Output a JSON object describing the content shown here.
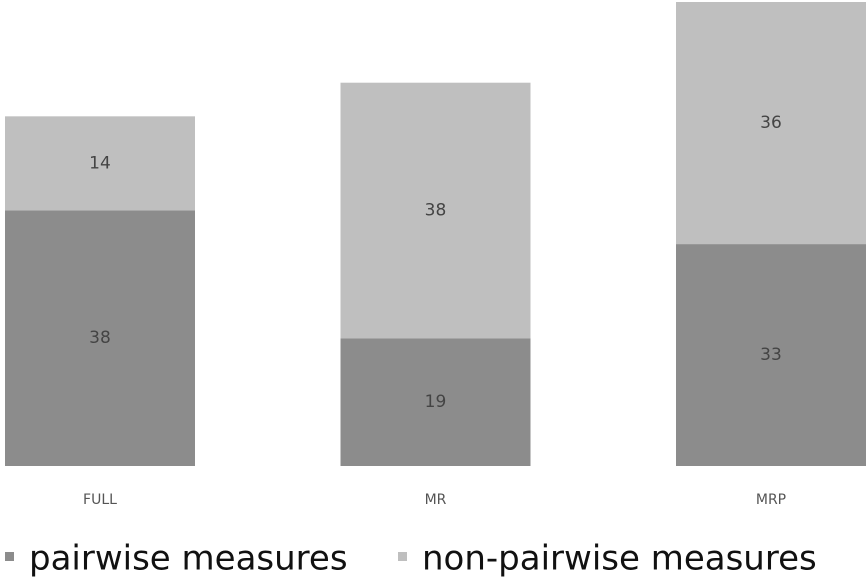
{
  "chart_data": {
    "type": "stacked-bar",
    "categories": [
      "FULL",
      "MR",
      "MRP"
    ],
    "series": [
      {
        "name": "pairwise measures",
        "color": "#8c8c8c",
        "values": [
          38,
          19,
          33
        ]
      },
      {
        "name": "non-pairwise measures",
        "color": "#bfbfbf",
        "values": [
          14,
          38,
          36
        ]
      }
    ]
  }
}
